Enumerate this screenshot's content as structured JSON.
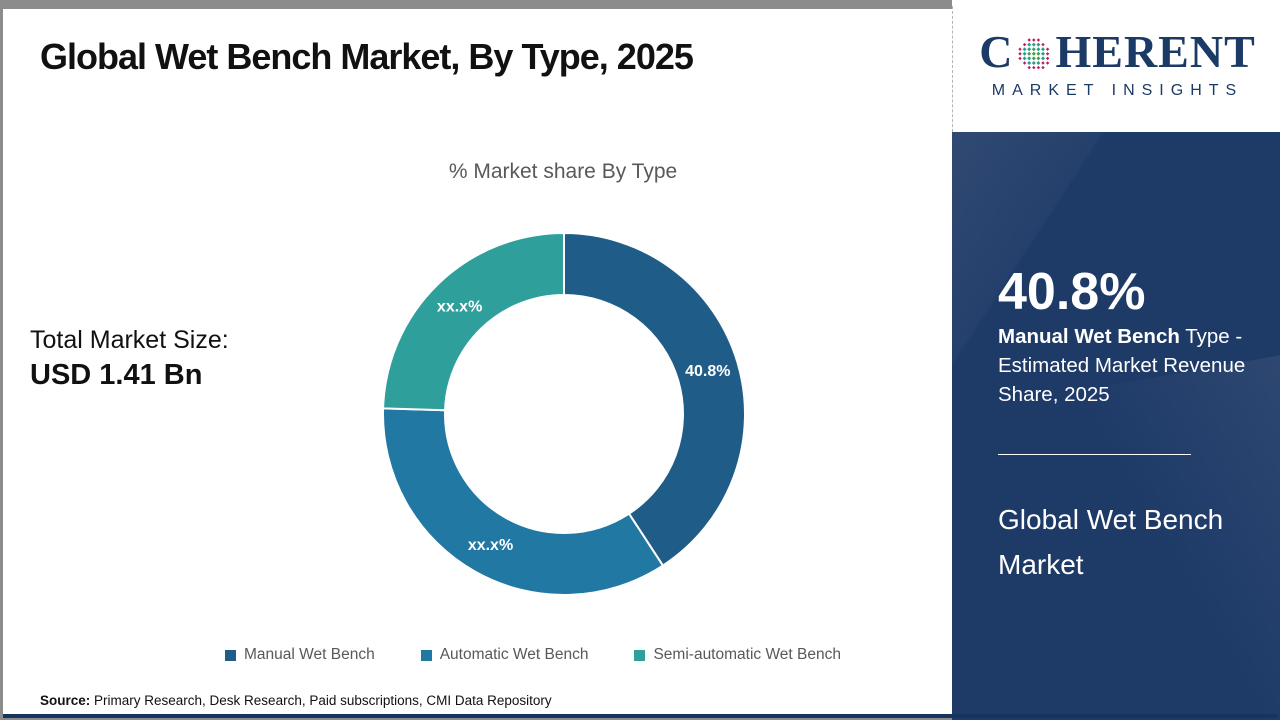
{
  "page": {
    "title": "Global Wet Bench Market, By Type, 2025",
    "source_label": "Source:",
    "source_text": " Primary Research, Desk Research, Paid subscriptions, CMI Data Repository"
  },
  "main": {
    "total_market_label": "Total Market Size:",
    "total_market_value": "USD 1.41 Bn"
  },
  "chart_data": {
    "type": "pie",
    "donut": true,
    "title": "% Market share By Type",
    "categories": [
      "Manual Wet Bench",
      "Automatic Wet Bench",
      "Semi-automatic Wet Bench"
    ],
    "values": [
      40.8,
      34.7,
      24.5
    ],
    "slice_labels": [
      "40.8%",
      "xx.x%",
      "xx.x%"
    ],
    "colors": [
      "#1f5c87",
      "#2178a3",
      "#2f9f9c"
    ],
    "start_angle_deg": 0,
    "legend_position": "bottom",
    "label_color": "#ffffff"
  },
  "sidebar": {
    "logo": {
      "text_c": "C",
      "text_rest": "HERENT",
      "subtext": "MARKET INSIGHTS",
      "brand_navy": "#1b3a66",
      "globe_colors": [
        "#c2185b",
        "#2a9d8f",
        "#43a047"
      ]
    },
    "stat_value": "40.8%",
    "stat_bold": "Manual Wet Bench",
    "stat_rest": " Type - Estimated Market Revenue Share, 2025",
    "panel_title": "Global Wet Bench Market",
    "panel_bg": "#1e3a67"
  }
}
